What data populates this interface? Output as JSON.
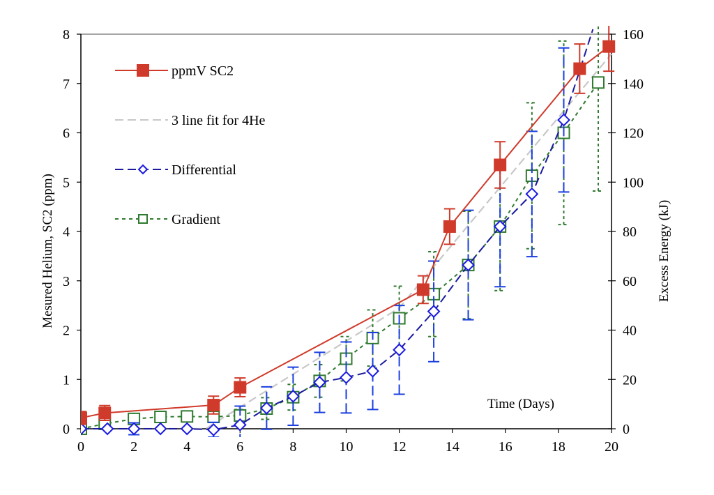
{
  "chart_data": {
    "type": "line",
    "title": "",
    "xlabel": "Time (Days)",
    "ylabel": "Mesured Helium, SC2 (ppm)",
    "y2label": "Excess Energy (kJ)",
    "xlim": [
      0,
      20
    ],
    "ylim": [
      0,
      8
    ],
    "y2lim": [
      0,
      160
    ],
    "xticks": [
      0,
      2,
      4,
      6,
      8,
      10,
      12,
      14,
      16,
      18,
      20
    ],
    "yticks": [
      0,
      1,
      2,
      3,
      4,
      5,
      6,
      7,
      8
    ],
    "y2ticks": [
      0,
      20,
      40,
      60,
      80,
      100,
      120,
      140,
      160
    ],
    "grid": false,
    "legend_position": "top-left",
    "series": [
      {
        "name": "ppmV SC2",
        "color": "#d03a2a",
        "marker": "filled-square",
        "line": "solid",
        "points": [
          {
            "x": 0,
            "y": 0.22,
            "err": 0.13
          },
          {
            "x": 0.9,
            "y": 0.32,
            "err": 0.15
          },
          {
            "x": 5,
            "y": 0.48,
            "err": 0.18
          },
          {
            "x": 6,
            "y": 0.84,
            "err": 0.19
          },
          {
            "x": 12.9,
            "y": 2.82,
            "err": 0.28
          },
          {
            "x": 13.9,
            "y": 4.1,
            "err": 0.36
          },
          {
            "x": 15.8,
            "y": 5.35,
            "err": 0.47
          },
          {
            "x": 18.8,
            "y": 7.3,
            "err": 0.5
          },
          {
            "x": 19.9,
            "y": 7.75,
            "err": 0.5
          }
        ]
      },
      {
        "name": "3 line fit for 4He",
        "color": "#c8c8c8",
        "marker": "none",
        "line": "dashed",
        "points": [
          {
            "x": 0,
            "y": 0
          },
          {
            "x": 4.7,
            "y": 0
          },
          {
            "x": 12,
            "y": 2.45
          },
          {
            "x": 20,
            "y": 7.6
          }
        ]
      },
      {
        "name": "Differential",
        "color": "#1a1aa0",
        "errcolor": "#1a3ee0",
        "marker": "open-diamond",
        "line": "dashed",
        "axis": "right",
        "points": [
          {
            "x": 0,
            "y": 0,
            "err": 0
          },
          {
            "x": 1,
            "y": 0,
            "err": 0
          },
          {
            "x": 2,
            "y": 0,
            "err": 0.12
          },
          {
            "x": 3,
            "y": 0,
            "err": 0
          },
          {
            "x": 4,
            "y": 0,
            "err": 0
          },
          {
            "x": 5,
            "y": -0.02,
            "err": 0.15
          },
          {
            "x": 6,
            "y": 0.08,
            "err": 0.38
          },
          {
            "x": 7,
            "y": 0.42,
            "err": 0.43
          },
          {
            "x": 8,
            "y": 0.66,
            "err": 0.59
          },
          {
            "x": 9,
            "y": 0.94,
            "err": 0.61
          },
          {
            "x": 10,
            "y": 1.04,
            "err": 0.72
          },
          {
            "x": 11,
            "y": 1.17,
            "err": 0.78
          },
          {
            "x": 12,
            "y": 1.6,
            "err": 0.9
          },
          {
            "x": 13.3,
            "y": 2.38,
            "err": 1.02
          },
          {
            "x": 14.6,
            "y": 3.32,
            "err": 1.11
          },
          {
            "x": 15.8,
            "y": 4.1,
            "err": 1.22
          },
          {
            "x": 17,
            "y": 4.76,
            "err": 1.27
          },
          {
            "x": 18.2,
            "y": 6.26,
            "err": 1.46
          },
          {
            "x": 19.3,
            "y": 8.1,
            "err": 0
          }
        ]
      },
      {
        "name": "Gradient",
        "color": "#2f7a2f",
        "marker": "open-square",
        "line": "dotted",
        "axis": "right",
        "points": [
          {
            "x": 0,
            "y": 0,
            "err": 0
          },
          {
            "x": 0.9,
            "y": 0.1,
            "err": 0
          },
          {
            "x": 2,
            "y": 0.2,
            "err": 0
          },
          {
            "x": 3,
            "y": 0.24,
            "err": 0
          },
          {
            "x": 4,
            "y": 0.25,
            "err": 0
          },
          {
            "x": 5,
            "y": 0.24,
            "err": 0
          },
          {
            "x": 6,
            "y": 0.27,
            "err": 0.12
          },
          {
            "x": 7,
            "y": 0.41,
            "err": 0.22
          },
          {
            "x": 8,
            "y": 0.64,
            "err": 0.26
          },
          {
            "x": 9,
            "y": 0.97,
            "err": 0.33
          },
          {
            "x": 10,
            "y": 1.42,
            "err": 0.45
          },
          {
            "x": 11,
            "y": 1.84,
            "err": 0.57
          },
          {
            "x": 12,
            "y": 2.24,
            "err": 0.65
          },
          {
            "x": 13.3,
            "y": 2.73,
            "err": 0.86
          },
          {
            "x": 14.6,
            "y": 3.32,
            "err": 1.09
          },
          {
            "x": 15.8,
            "y": 4.1,
            "err": 1.3
          },
          {
            "x": 17,
            "y": 5.13,
            "err": 1.48
          },
          {
            "x": 18.2,
            "y": 6.0,
            "err": 1.86
          },
          {
            "x": 19.5,
            "y": 7.02,
            "err": 2.2
          }
        ]
      }
    ]
  }
}
